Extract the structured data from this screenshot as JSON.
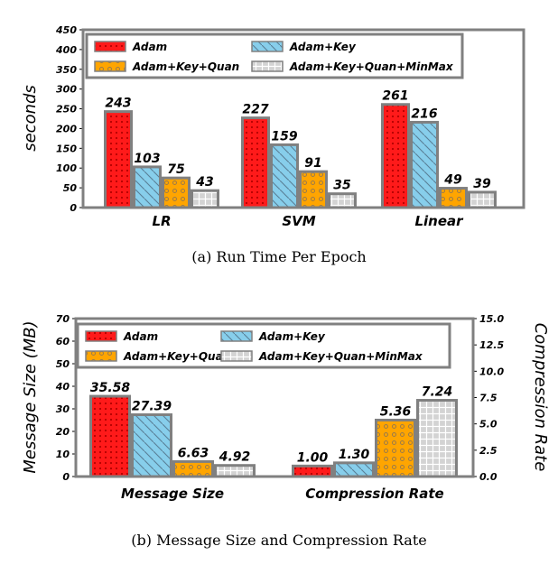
{
  "colors": {
    "adam": "#ff1a1a",
    "adam_key": "#87ceeb",
    "adam_key_quan": "#ffa500",
    "minmax": "#d3d3d3",
    "edge": "#808080"
  },
  "chart_data": [
    {
      "type": "bar",
      "caption": "(a)  Run Time Per Epoch",
      "ylabel": "seconds",
      "ylim": [
        0,
        450
      ],
      "yticks": [
        0,
        50,
        100,
        150,
        200,
        250,
        300,
        350,
        400,
        450
      ],
      "categories": [
        "LR",
        "SVM",
        "Linear"
      ],
      "legend_position": "top",
      "series": [
        {
          "name": "Adam",
          "values": [
            243,
            227,
            261
          ],
          "labels": [
            "243",
            "227",
            "261"
          ]
        },
        {
          "name": "Adam+Key",
          "values": [
            103,
            159,
            216
          ],
          "labels": [
            "103",
            "159",
            "216"
          ]
        },
        {
          "name": "Adam+Key+Quan",
          "values": [
            75,
            91,
            49
          ],
          "labels": [
            "75",
            "91",
            "49"
          ]
        },
        {
          "name": "Adam+Key+Quan+MinMax",
          "values": [
            43,
            35,
            39
          ],
          "labels": [
            "43",
            "35",
            "39"
          ]
        }
      ]
    },
    {
      "type": "bar",
      "caption": "(b)  Message Size and Compression Rate",
      "ylabel": "Message Size (MB)",
      "ylabel_right": "Compression Rate",
      "ylim": [
        0,
        70
      ],
      "yticks": [
        0,
        10,
        20,
        30,
        40,
        50,
        60,
        70
      ],
      "ylim_right": [
        0,
        15
      ],
      "yticks_right": [
        "0.0",
        "2.5",
        "5.0",
        "7.5",
        "10.0",
        "12.5",
        "15.0"
      ],
      "categories": [
        "Message Size",
        "Compression Rate"
      ],
      "legend_position": "top",
      "series": [
        {
          "name": "Adam",
          "values": [
            35.58,
            1.0
          ],
          "labels": [
            "35.58",
            "1.00"
          ]
        },
        {
          "name": "Adam+Key",
          "values": [
            27.39,
            1.3
          ],
          "labels": [
            "27.39",
            "1.30"
          ]
        },
        {
          "name": "Adam+Key+Quan",
          "values": [
            6.63,
            5.36
          ],
          "labels": [
            "6.63",
            "5.36"
          ]
        },
        {
          "name": "Adam+Key+Quan+MinMax",
          "values": [
            4.92,
            7.24
          ],
          "labels": [
            "4.92",
            "7.24"
          ]
        }
      ]
    }
  ]
}
